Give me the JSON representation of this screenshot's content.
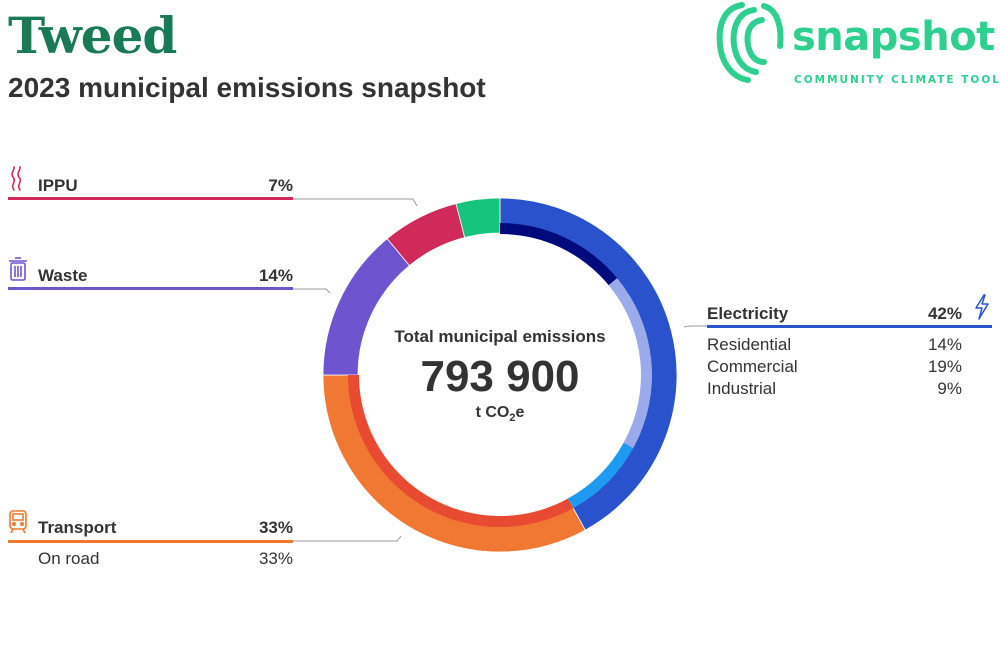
{
  "header": {
    "title": "Tweed",
    "subtitle": "2023 municipal emissions snapshot"
  },
  "logo": {
    "word": "snapshot",
    "tagline": "COMMUNITY CLIMATE TOOL",
    "color": "#2fd08f"
  },
  "center": {
    "label": "Total municipal emissions",
    "value": "793 900",
    "unit_prefix": "t CO",
    "unit_sub": "2",
    "unit_suffix": "e"
  },
  "chart_data": {
    "type": "donut",
    "total": 793900,
    "unit": "t CO2e",
    "categories": [
      {
        "name": "Electricity",
        "pct_label": "42%",
        "value": 42,
        "color": "#2a52cc",
        "icon": "lightning-icon",
        "subcategories": [
          {
            "name": "Residential",
            "pct_label": "14%",
            "value": 14,
            "color": "#000a7a"
          },
          {
            "name": "Commercial",
            "pct_label": "19%",
            "value": 19,
            "color": "#9aaaea"
          },
          {
            "name": "Industrial",
            "pct_label": "9%",
            "value": 9,
            "color": "#1e9bf0"
          }
        ]
      },
      {
        "name": "Transport",
        "pct_label": "33%",
        "value": 33,
        "color": "#f07832",
        "icon": "train-icon",
        "subcategories": [
          {
            "name": "On road",
            "pct_label": "33%",
            "value": 33,
            "color": "#e84a32"
          }
        ]
      },
      {
        "name": "Waste",
        "pct_label": "14%",
        "value": 14,
        "color": "#6e55cf",
        "icon": "trash-icon",
        "subcategories": []
      },
      {
        "name": "IPPU",
        "pct_label": "7%",
        "value": 7,
        "color": "#cf2a5a",
        "icon": "smoke-icon",
        "subcategories": []
      },
      {
        "name": "",
        "pct_label": "",
        "value": 4,
        "color": "#16c47e",
        "subcategories": []
      }
    ]
  }
}
